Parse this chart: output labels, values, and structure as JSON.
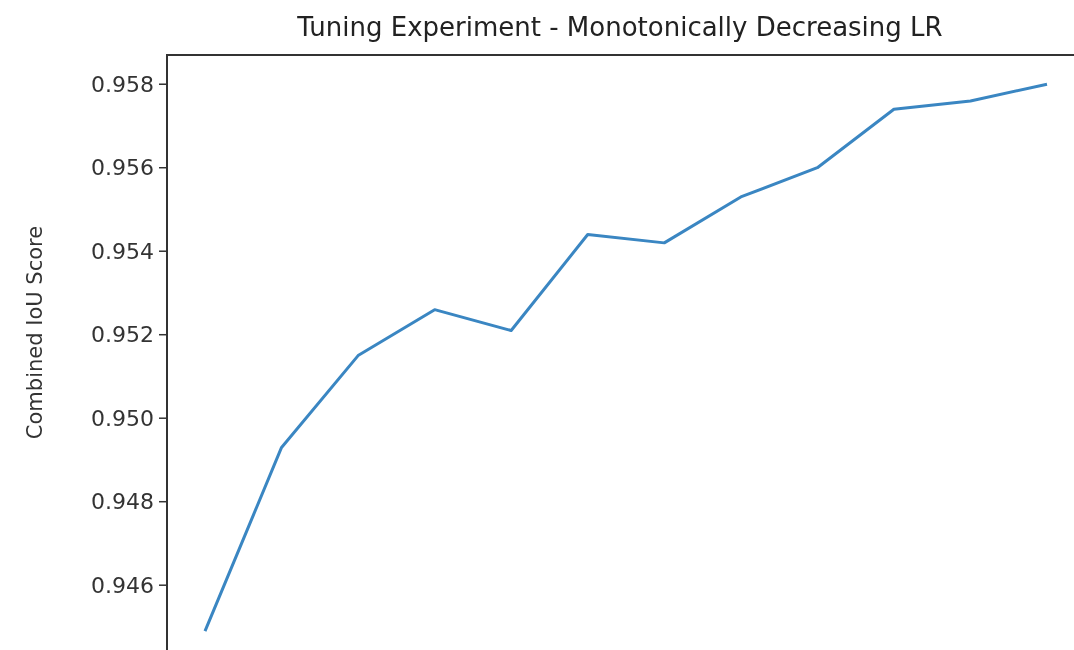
{
  "chart_data": {
    "type": "line",
    "title": "Tuning Experiment - Monotonically Decreasing LR",
    "ylabel": "Combined IoU Score",
    "categories": [
      null,
      null,
      null,
      null,
      null,
      null,
      null,
      null,
      null,
      null,
      null,
      null
    ],
    "series": [
      {
        "color": "#3a86c2",
        "values": [
          0.9449,
          0.9493,
          0.9515,
          0.9526,
          0.9521,
          0.9544,
          0.9542,
          0.9553,
          0.956,
          0.9574,
          0.9576,
          0.958
        ]
      }
    ],
    "ylim": [
      0.9444,
      0.9587
    ],
    "yticks": [
      {
        "value": 0.946,
        "label": "0.946"
      },
      {
        "value": 0.948,
        "label": "0.948"
      },
      {
        "value": 0.95,
        "label": "0.950"
      },
      {
        "value": 0.952,
        "label": "0.952"
      },
      {
        "value": 0.954,
        "label": "0.954"
      },
      {
        "value": 0.956,
        "label": "0.956"
      },
      {
        "value": 0.958,
        "label": "0.958"
      }
    ],
    "marker": "none",
    "line_style": "solid",
    "tick_labels": "y"
  }
}
